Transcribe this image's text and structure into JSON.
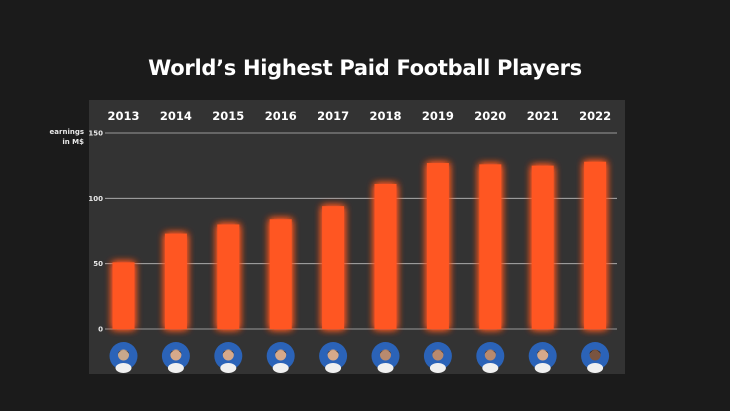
{
  "chart_data": {
    "type": "bar",
    "title": "World’s Highest Paid Football Players",
    "ylabel_line1": "earnings",
    "ylabel_line2": "in M$",
    "categories": [
      "2013",
      "2014",
      "2015",
      "2016",
      "2017",
      "2018",
      "2019",
      "2020",
      "2021",
      "2022"
    ],
    "values": [
      51,
      73,
      80,
      84,
      94,
      111,
      127,
      126,
      125,
      128
    ],
    "yticks": [
      0,
      50,
      100,
      150
    ],
    "ylim": [
      0,
      150
    ],
    "grid": true,
    "bar_color": "#ff5722",
    "plot_background": "#333333",
    "player_avatars": [
      "player-1",
      "player-2",
      "player-2",
      "player-2",
      "player-2",
      "player-3",
      "player-3",
      "player-3",
      "player-2",
      "player-4"
    ]
  }
}
